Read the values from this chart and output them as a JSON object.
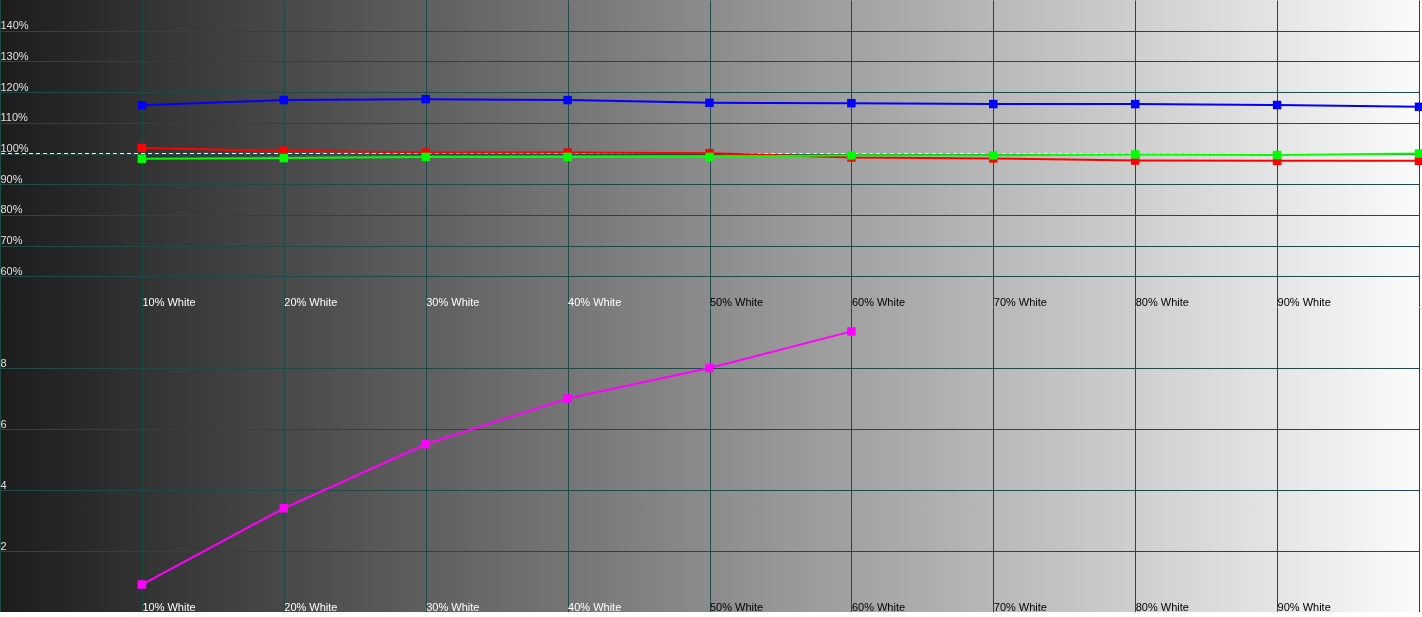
{
  "chart_data": [
    {
      "type": "line",
      "categories": [
        null,
        "10% White",
        "20% White",
        "30% White",
        "40% White",
        "50% White",
        "60% White",
        "70% White",
        "80% White",
        "90% White",
        null
      ],
      "series": [
        {
          "color": "#ff0000",
          "values": [
            null,
            101.8,
            100.9,
            100.3,
            100.3,
            100.1,
            98.7,
            98.4,
            97.7,
            97.6,
            97.6
          ]
        },
        {
          "color": "#00ff00",
          "values": [
            null,
            98.3,
            98.5,
            98.9,
            98.9,
            98.9,
            99.4,
            99.4,
            99.7,
            99.5,
            100.0
          ]
        },
        {
          "color": "#0000ff",
          "values": [
            null,
            115.7,
            117.4,
            117.7,
            117.4,
            116.5,
            116.4,
            116.1,
            116.1,
            115.8,
            115.2
          ]
        }
      ],
      "ylim": [
        50,
        150
      ],
      "yticks": [
        {
          "value": 60,
          "label": "60%"
        },
        {
          "value": 70,
          "label": "70%"
        },
        {
          "value": 80,
          "label": "80%"
        },
        {
          "value": 90,
          "label": "90%"
        },
        {
          "value": 100,
          "label": "100%"
        },
        {
          "value": 110,
          "label": "110%"
        },
        {
          "value": 120,
          "label": "120%"
        },
        {
          "value": 130,
          "label": "130%"
        },
        {
          "value": 140,
          "label": "140%"
        }
      ],
      "grid": true,
      "marker": "square",
      "ref_lines": [
        {
          "axis": "y",
          "value": 100,
          "color": "#ffffff",
          "line_style": "dashed"
        }
      ]
    },
    {
      "type": "line",
      "categories": [
        null,
        "10% White",
        "20% White",
        "30% White",
        "40% White",
        "50% White",
        "60% White",
        "70% White",
        "80% White",
        "90% White",
        null
      ],
      "series": [
        {
          "color": "#ff00ff",
          "values": [
            null,
            0.9,
            3.4,
            5.5,
            7.0,
            8.0,
            9.2,
            null,
            null,
            null,
            null
          ]
        }
      ],
      "ylim": [
        0,
        10
      ],
      "yticks": [
        2,
        4,
        6,
        8
      ],
      "grid": true,
      "marker": "square"
    }
  ]
}
